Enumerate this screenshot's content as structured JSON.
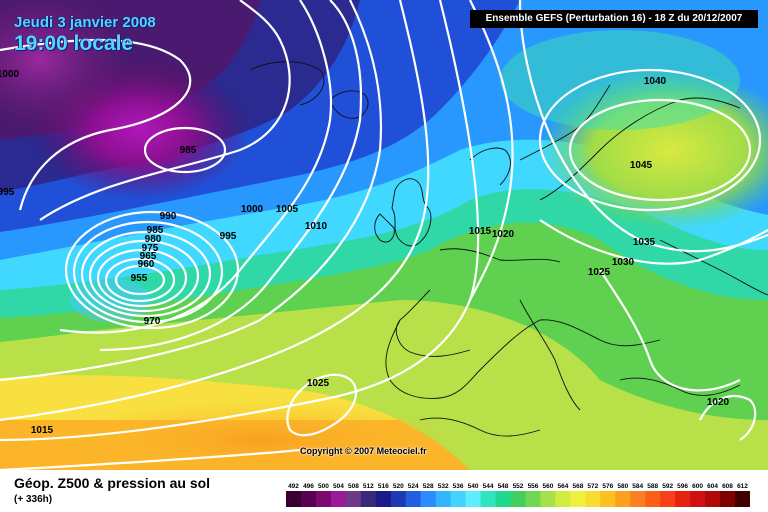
{
  "header": {
    "date": "Jeudi 3 janvier 2008",
    "time": "19:00 locale",
    "run": "Ensemble GEFS (Perturbation 16)  -  18 Z du 20/12/2007"
  },
  "footer": {
    "product": "Géop. Z500 & pression au sol",
    "lead": "(+ 336h)",
    "copyright": "Copyright © 2007 Meteociel.fr"
  },
  "isobar_labels": [
    {
      "text": "1000"
    },
    {
      "text": "995"
    },
    {
      "text": "985"
    },
    {
      "text": "990"
    },
    {
      "text": "985"
    },
    {
      "text": "980"
    },
    {
      "text": "975"
    },
    {
      "text": "965"
    },
    {
      "text": "960"
    },
    {
      "text": "955"
    },
    {
      "text": "970"
    },
    {
      "text": "1000"
    },
    {
      "text": "1005"
    },
    {
      "text": "995"
    },
    {
      "text": "1010"
    },
    {
      "text": "1015"
    },
    {
      "text": "1020"
    },
    {
      "text": "1040"
    },
    {
      "text": "1045"
    },
    {
      "text": "1035"
    },
    {
      "text": "1030"
    },
    {
      "text": "1025"
    },
    {
      "text": "1020"
    },
    {
      "text": "1025"
    },
    {
      "text": "1015"
    }
  ],
  "legend": {
    "values": [
      "492",
      "496",
      "500",
      "504",
      "508",
      "512",
      "516",
      "520",
      "524",
      "528",
      "532",
      "536",
      "540",
      "544",
      "548",
      "552",
      "556",
      "560",
      "564",
      "568",
      "572",
      "576",
      "580",
      "584",
      "588",
      "592",
      "596",
      "600",
      "604",
      "608",
      "612"
    ],
    "colors": [
      "#3a0030",
      "#5a0050",
      "#7a0a70",
      "#9a1a98",
      "#6e3a88",
      "#3a2a7c",
      "#1a1a8c",
      "#1c3ab4",
      "#2060e0",
      "#2a8cff",
      "#34b4ff",
      "#40d4ff",
      "#60ecff",
      "#30e4c0",
      "#20d890",
      "#40d060",
      "#70d850",
      "#a8e048",
      "#d0ec40",
      "#f0f040",
      "#f8dc30",
      "#fcc020",
      "#fca020",
      "#fc8020",
      "#fc6018",
      "#f84018",
      "#e82010",
      "#d01010",
      "#b00808",
      "#800000",
      "#400000"
    ]
  }
}
